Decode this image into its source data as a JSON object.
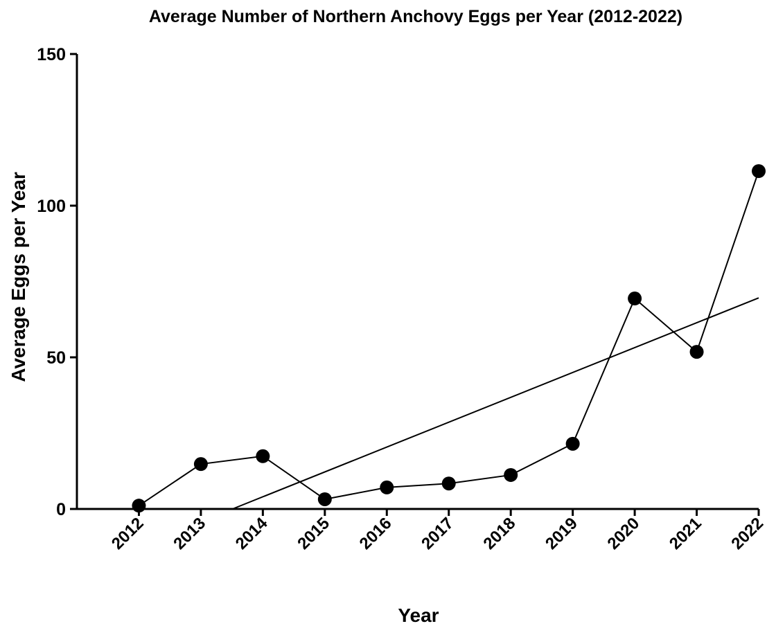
{
  "chart_data": {
    "type": "line",
    "title": "Average Number of Northern Anchovy Eggs per Year (2012-2022)",
    "x_label": "Year",
    "y_label": "Average Eggs per Year",
    "x": [
      2012,
      2013,
      2014,
      2015,
      2016,
      2017,
      2018,
      2019,
      2020,
      2021,
      2022
    ],
    "values": [
      1.1,
      14.8,
      17.4,
      3.2,
      7.1,
      8.4,
      11.2,
      21.5,
      69.4,
      51.8,
      111.4
    ],
    "color": "#000000",
    "trend": {
      "x": [
        2013.51,
        2022
      ],
      "values": [
        0,
        69.6
      ]
    },
    "xlim": [
      2011,
      2022
    ],
    "xticks": [
      2012,
      2013,
      2014,
      2015,
      2016,
      2017,
      2018,
      2019,
      2020,
      2021,
      2022
    ],
    "ylim": [
      0,
      150
    ],
    "yticks": [
      0,
      50,
      100,
      150
    ]
  }
}
